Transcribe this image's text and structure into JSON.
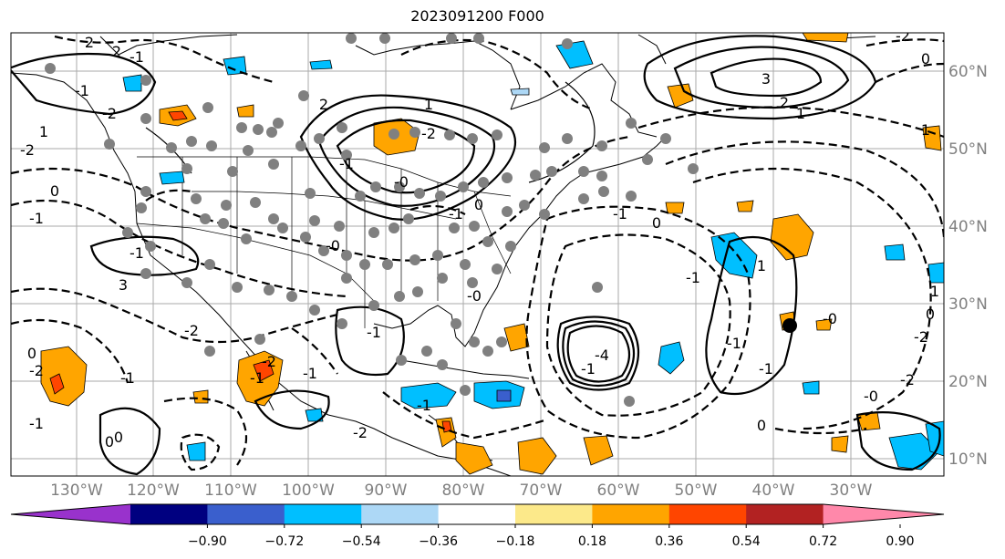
{
  "title": "2023091200 F000",
  "lon_ticks": [
    "130°W",
    "120°W",
    "110°W",
    "100°W",
    "90°W",
    "80°W",
    "70°W",
    "60°W",
    "50°W",
    "40°W",
    "30°W"
  ],
  "lat_ticks": [
    "60°N",
    "50°N",
    "40°N",
    "30°N",
    "20°N",
    "10°N"
  ],
  "colorbar": {
    "colors": [
      "#9932cc",
      "#000080",
      "#3a5fcd",
      "#00bfff",
      "#add8f6",
      "#ffffff",
      "#fce98a",
      "#ffa500",
      "#ff4500",
      "#b22222",
      "#ff88aa"
    ],
    "labels": [
      "−0.90",
      "−0.72",
      "−0.54",
      "−0.36",
      "−0.18",
      "0.18",
      "0.36",
      "0.54",
      "0.72",
      "0.90"
    ]
  },
  "contour_labels": [
    "2",
    "2",
    "-1",
    "2",
    "1",
    "-2",
    "0",
    "-1",
    "1",
    "3",
    "-2",
    "0",
    "-1",
    "0",
    "-2",
    "0",
    "-1",
    "1",
    "-1",
    "-2",
    "-1",
    "-1",
    "3",
    "-2",
    "-1",
    "-0",
    "-1",
    "-4",
    "-2",
    "0",
    "-1",
    "-1",
    "0",
    "-2",
    "-1",
    "0",
    "-0",
    "-2",
    "0",
    "1",
    "-0",
    "-2",
    "-1",
    "-0",
    "-0",
    "-1",
    "-1",
    "1",
    "-2",
    "-1",
    "-1",
    "0",
    "2",
    "1"
  ]
}
